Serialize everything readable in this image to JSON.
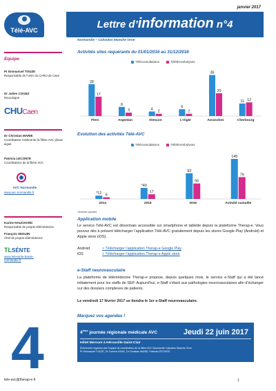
{
  "header": {
    "date": "janvier 2017",
    "title_prefix": "Lettre d’",
    "title_big": "information",
    "title_suffix": " n°4",
    "subtitle": "Normandie – Calvados Manche Orne"
  },
  "sidebar": {
    "logo": "Télé-AVC",
    "team_label": "Equipe",
    "people": [
      {
        "name": "Pr Emmanuel TOUZE",
        "role": "Responsable de l’UNV du CHRU de Caen"
      },
      {
        "name": "Dr Julien COGEZ",
        "role": "Neurologue"
      },
      {
        "name": "Dr Christian MARIE",
        "role": "Coordinateur médical de la filière AVC phase aiguë"
      },
      {
        "name": "Patricia LECONTE",
        "role": "Coordinatrice de la filière AVC"
      },
      {
        "name": "Karine HAUCHARD",
        "role": "Responsable de projets télémédecine"
      },
      {
        "name": "François SEGUIN",
        "role": "Chef de projets télémédecine"
      }
    ],
    "chu_logo_1": "CHU",
    "chu_logo_2": "Caen",
    "avc_normandie": "AVC Normandie",
    "avc_link": "www.avc-normandie.fr",
    "tlsante_1": "TL",
    "tlsante_2": "SÉNTE",
    "tlsante_link_1": "www.telesante-basse-",
    "tlsante_link_2": "normandie.fr",
    "big_number": "4",
    "email": "tele-avc@therap-e.fr"
  },
  "section1": {
    "title": "Activités sites requérants du 01/01/2016 au 31/12/2016",
    "legend": [
      "Téléconsultations",
      "Téléthrombolyses"
    ]
  },
  "section2": {
    "title": "Evolution des activités Télé-AVC",
    "legend": [
      "Téléconsultations",
      "Téléthrombolyses"
    ],
    "note": "*Activité ajustée"
  },
  "colors": {
    "primary": "#1f5fa5",
    "accent": "#c31b6e",
    "tc": "#2a8fd6",
    "tt": "#d42b8c"
  },
  "chart_data": [
    {
      "type": "bar",
      "categories": [
        "Flers",
        "Argentan",
        "Alençon",
        "L’Aigle",
        "Avranches",
        "Cherbourg"
      ],
      "series": [
        {
          "name": "Téléconsultations",
          "values": [
            28,
            8,
            4,
            6,
            36,
            11
          ]
        },
        {
          "name": "Téléthrombolyses",
          "values": [
            17,
            3,
            2,
            2,
            20,
            12
          ]
        }
      ],
      "ylim": [
        0,
        40
      ]
    },
    {
      "type": "bar",
      "categories": [
        "2014",
        "2015",
        "2016",
        "Activité cumulée"
      ],
      "series": [
        {
          "name": "Téléconsultations",
          "values": [
            12,
            40,
            93,
            145
          ],
          "labels": [
            "*12",
            "*40",
            "93",
            "145"
          ]
        },
        {
          "name": "Téléthrombolyses",
          "values": [
            6,
            17,
            56,
            79
          ],
          "labels": [
            "6",
            "17",
            "56",
            "79"
          ]
        }
      ],
      "ylim": [
        0,
        160
      ]
    }
  ],
  "mobile": {
    "title": "Application mobile",
    "text": "Le service Télé-AVC est désormais accessible sur smartphone et tablette depuis la plateforme Therap-e. Vous pouvez dès à présent télécharger l’application Télé-AVC gratuitement depuis les stores Google Play (Android) et Apple store (iOS).",
    "android_label": "Android",
    "android_link": "> Télécharger l’application Therap-e Google Play",
    "ios_label": "iOS",
    "ios_link": "> Télécharger l’application Therap-e Apple store"
  },
  "estaff": {
    "title": "e-Staff neurovasculaire",
    "text": "La plateforme de télémédecine Therap-e propose, depuis quelques mois, le service e-Staff qui a été lancé initialement pour les staffs de SEP. Aujourd’hui, e-Staff s’étant aux pathologies neurovasculaires afin d’échanger sur des dossiers complexes de patients.",
    "bold": "Le vendredi 17 février 2017 se tiendra le 1er e-Staff neurovasculaire."
  },
  "agenda": {
    "title": "Marquez vos agendas !",
    "event_num": "4",
    "event_sup": "ème",
    "event_name": " journée régionale médicale AVC",
    "event_date": "Jeudi 22 juin 2017",
    "event_place": "Hôtel Mercure à Hérouville-Saint-Clair",
    "event_desc": "Événement organisé par l’équipe de coordination de la filière AVC Normandie Calvados Manche Orne\nPr Emmanuel TOUZE, Dr Corinne IGNIC, Dr Christian MARIE, Patricia LECONTE"
  },
  "page_number": "1"
}
